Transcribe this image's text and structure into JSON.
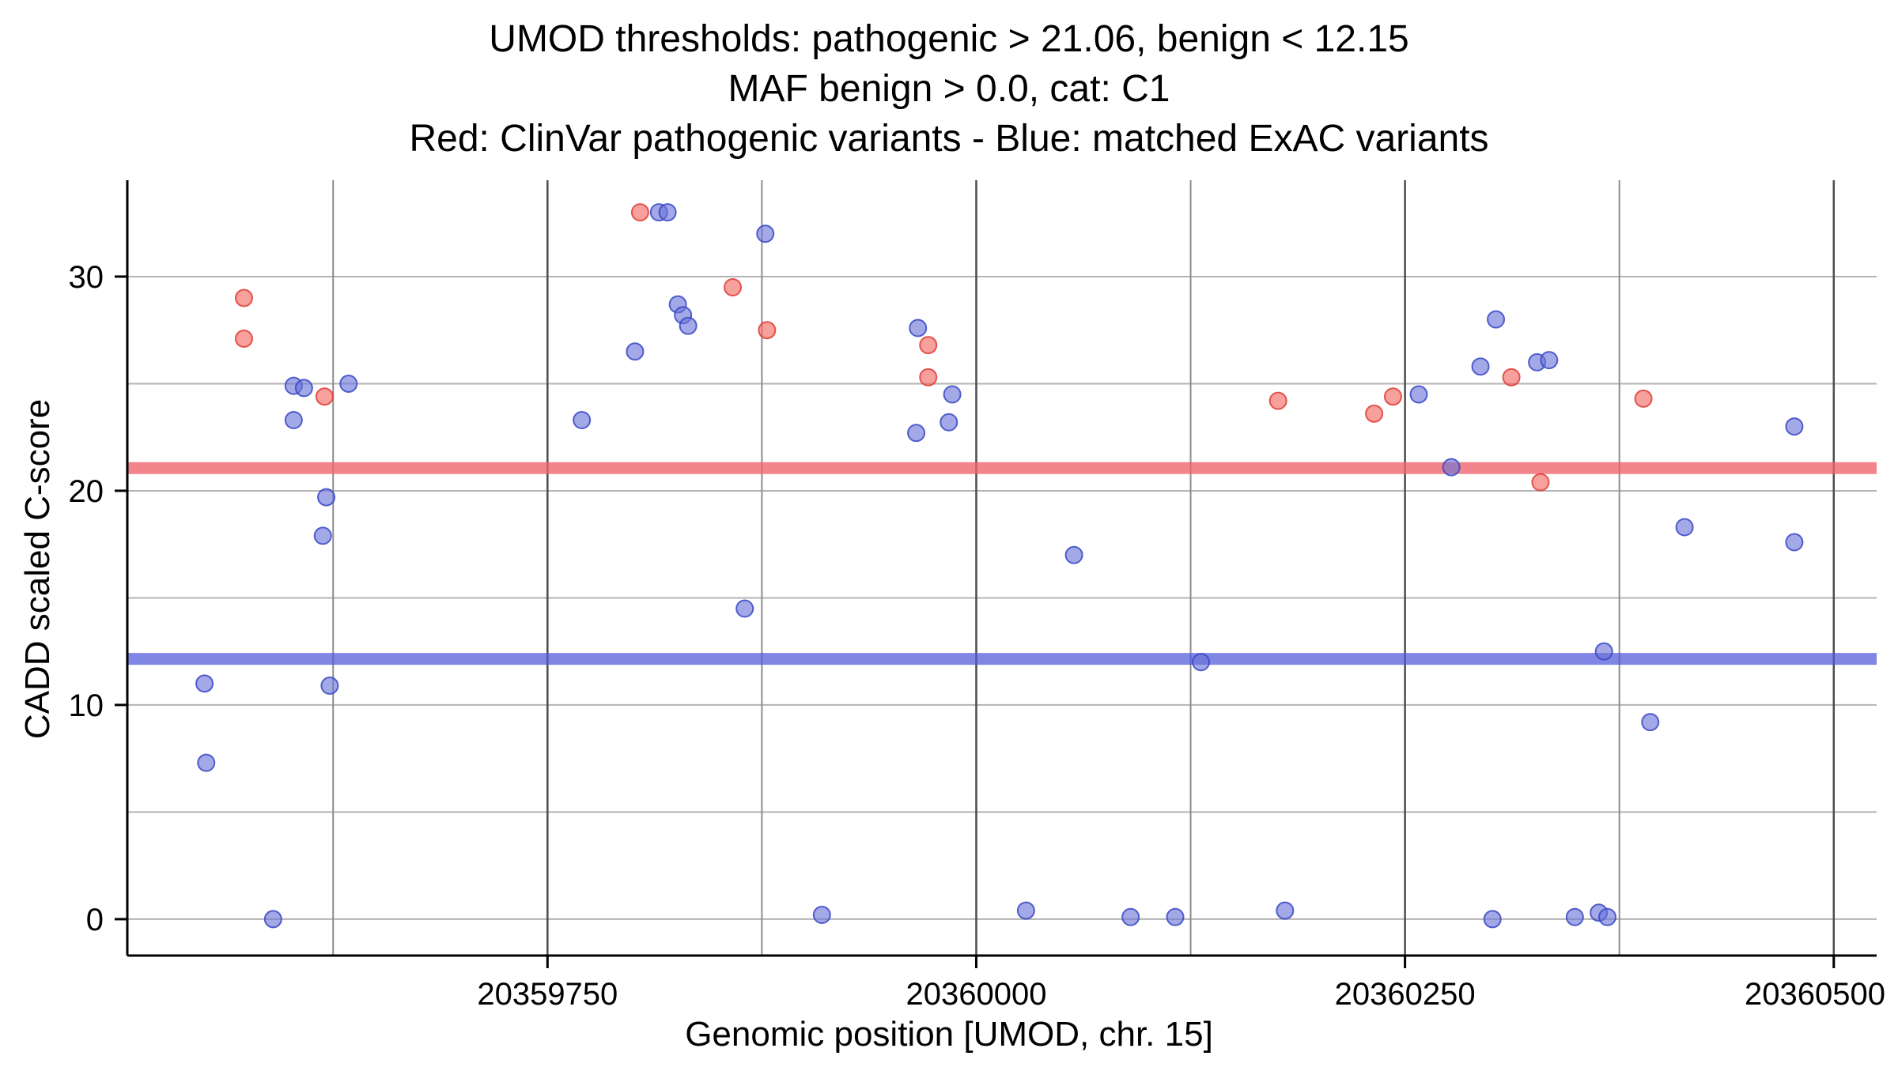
{
  "chart_data": {
    "type": "scatter",
    "title_lines": [
      "UMOD thresholds: pathogenic > 21.06, benign < 12.15",
      "MAF benign > 0.0, cat: C1",
      "Red: ClinVar pathogenic variants - Blue: matched ExAC variants"
    ],
    "xlabel": "Genomic position [UMOD, chr. 15]",
    "ylabel": "CADD scaled C-score",
    "xlim": [
      20359505,
      20360525
    ],
    "ylim": [
      -1.7,
      34.5
    ],
    "x_ticks": [
      20359750,
      20360000,
      20360250,
      20360500
    ],
    "x_minor_gridlines": [
      20359625,
      20359875,
      20360125,
      20360375
    ],
    "y_ticks": [
      0,
      10,
      20,
      30
    ],
    "y_gridlines": [
      0,
      5,
      10,
      15,
      20,
      25,
      30
    ],
    "legend_position": "none",
    "grid": true,
    "thresholds": {
      "pathogenic": 21.06,
      "benign": 12.15
    },
    "threshold_colors": {
      "pathogenic": "#ef616a",
      "benign": "#4d58d8"
    },
    "series": [
      {
        "name": "ClinVar pathogenic variants",
        "fill": "#f4655f",
        "stroke": "#dd3c35",
        "points": [
          [
            20359573,
            29.0
          ],
          [
            20359573,
            27.1
          ],
          [
            20359620,
            24.4
          ],
          [
            20359804,
            33.0
          ],
          [
            20359858,
            29.5
          ],
          [
            20359878,
            27.5
          ],
          [
            20359972,
            26.8
          ],
          [
            20359972,
            25.3
          ],
          [
            20360176,
            24.2
          ],
          [
            20360232,
            23.6
          ],
          [
            20360243,
            24.4
          ],
          [
            20360312,
            25.3
          ],
          [
            20360329,
            20.4
          ],
          [
            20360389,
            24.3
          ]
        ]
      },
      {
        "name": "matched ExAC variants",
        "fill": "#6a74d9",
        "stroke": "#3a47c4",
        "points": [
          [
            20359550,
            11.0
          ],
          [
            20359551,
            7.3
          ],
          [
            20359590,
            0.0
          ],
          [
            20359602,
            24.9
          ],
          [
            20359608,
            24.8
          ],
          [
            20359602,
            23.3
          ],
          [
            20359621,
            19.7
          ],
          [
            20359619,
            17.9
          ],
          [
            20359623,
            10.9
          ],
          [
            20359634,
            25.0
          ],
          [
            20359770,
            23.3
          ],
          [
            20359801,
            26.5
          ],
          [
            20359815,
            33.0
          ],
          [
            20359820,
            33.0
          ],
          [
            20359826,
            28.7
          ],
          [
            20359829,
            28.2
          ],
          [
            20359832,
            27.7
          ],
          [
            20359865,
            14.5
          ],
          [
            20359877,
            32.0
          ],
          [
            20359910,
            0.2
          ],
          [
            20359966,
            27.6
          ],
          [
            20359965,
            22.7
          ],
          [
            20359986,
            24.5
          ],
          [
            20359984,
            23.2
          ],
          [
            20360029,
            0.4
          ],
          [
            20360057,
            17.0
          ],
          [
            20360090,
            0.1
          ],
          [
            20360116,
            0.1
          ],
          [
            20360131,
            12.0
          ],
          [
            20360180,
            0.4
          ],
          [
            20360258,
            24.5
          ],
          [
            20360277,
            21.1
          ],
          [
            20360294,
            25.8
          ],
          [
            20360303,
            28.0
          ],
          [
            20360301,
            0.0
          ],
          [
            20360327,
            26.0
          ],
          [
            20360334,
            26.1
          ],
          [
            20360349,
            0.1
          ],
          [
            20360363,
            0.3
          ],
          [
            20360368,
            0.1
          ],
          [
            20360366,
            12.5
          ],
          [
            20360393,
            9.2
          ],
          [
            20360413,
            18.3
          ],
          [
            20360477,
            23.0
          ],
          [
            20360477,
            17.6
          ]
        ]
      }
    ],
    "style": {
      "background": "#ffffff",
      "axis_color": "#000000",
      "major_vgrid_color": "#4d4d4d",
      "minor_vgrid_color": "#8c8c8c",
      "hgrid_color": "#b3b3b3"
    }
  }
}
